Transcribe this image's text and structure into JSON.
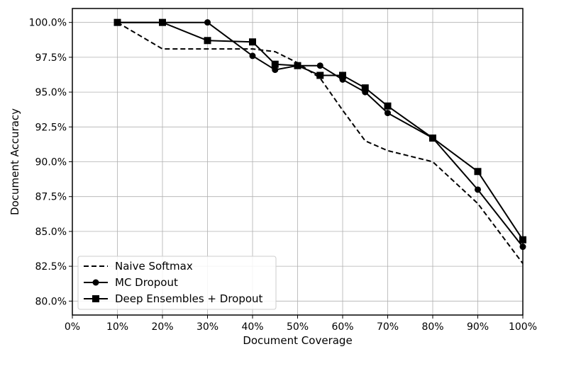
{
  "chart_data": {
    "type": "line",
    "xlabel": "Document Coverage",
    "ylabel": "Document Accuracy",
    "xlim": [
      0,
      100
    ],
    "ylim": [
      79.0,
      101.0
    ],
    "x_ticks": [
      0,
      10,
      20,
      30,
      40,
      50,
      60,
      70,
      80,
      90,
      100
    ],
    "x_tick_labels": [
      "0%",
      "10%",
      "20%",
      "30%",
      "40%",
      "50%",
      "60%",
      "70%",
      "80%",
      "90%",
      "100%"
    ],
    "y_ticks": [
      80.0,
      82.5,
      85.0,
      87.5,
      90.0,
      92.5,
      95.0,
      97.5,
      100.0
    ],
    "y_tick_labels": [
      "80.0%",
      "82.5%",
      "85.0%",
      "87.5%",
      "90.0%",
      "92.5%",
      "95.0%",
      "97.5%",
      "100.0%"
    ],
    "grid": true,
    "legend_position": "bottom-left",
    "series": [
      {
        "name": "Naive Softmax",
        "style": "dashed",
        "marker": "none",
        "color": "#000000",
        "x": [
          10,
          20,
          30,
          40,
          45,
          50,
          55,
          60,
          65,
          70,
          80,
          90,
          100
        ],
        "y": [
          100.0,
          98.1,
          98.1,
          98.1,
          97.9,
          97.1,
          96.0,
          93.7,
          91.5,
          90.8,
          90.0,
          87.0,
          82.7
        ]
      },
      {
        "name": "MC Dropout",
        "style": "solid",
        "marker": "circle",
        "color": "#000000",
        "x": [
          10,
          20,
          30,
          40,
          45,
          50,
          55,
          60,
          65,
          70,
          80,
          90,
          100
        ],
        "y": [
          100.0,
          100.0,
          100.0,
          97.6,
          96.6,
          96.9,
          96.9,
          95.9,
          95.0,
          93.5,
          91.7,
          88.0,
          83.9
        ]
      },
      {
        "name": "Deep Ensembles + Dropout",
        "style": "solid",
        "marker": "square",
        "color": "#000000",
        "x": [
          10,
          20,
          30,
          40,
          45,
          50,
          55,
          60,
          65,
          70,
          80,
          90,
          100
        ],
        "y": [
          100.0,
          100.0,
          98.7,
          98.6,
          97.0,
          96.9,
          96.2,
          96.2,
          95.3,
          94.0,
          91.7,
          89.3,
          84.4
        ]
      }
    ]
  }
}
